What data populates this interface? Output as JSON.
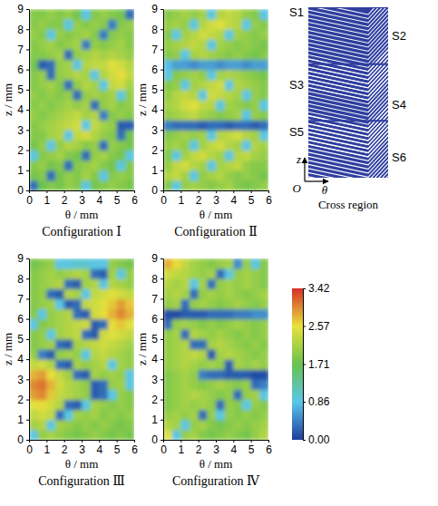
{
  "chart_data": [
    {
      "type": "heatmap",
      "title": "Configuration Ⅰ",
      "x_label": "θ / mm",
      "y_label": "z / mm",
      "xlim": [
        0,
        6
      ],
      "ylim": [
        0,
        9
      ],
      "xticks": [
        0,
        1,
        2,
        3,
        4,
        5,
        6
      ],
      "yticks": [
        0,
        1,
        2,
        3,
        4,
        5,
        6,
        7,
        8,
        9
      ],
      "cell_x": [
        0,
        0.5,
        1,
        1.5,
        2,
        2.5,
        3,
        3.5,
        4,
        4.5,
        5,
        5.5,
        6
      ],
      "cell_y": [
        0,
        0.5,
        1,
        1.5,
        2,
        2.5,
        3,
        3.5,
        4,
        4.5,
        5,
        5.5,
        6,
        6.5,
        7,
        7.5,
        8,
        8.5,
        9
      ],
      "cells": [
        [
          0.3,
          1.7,
          1.9,
          1.8,
          2.0,
          1.9,
          0.9,
          1.8,
          1.9,
          2.0,
          1.9,
          1.8
        ],
        [
          1.8,
          1.9,
          0.3,
          1.8,
          2.0,
          1.9,
          2.1,
          1.9,
          0.9,
          1.9,
          2.0,
          1.9
        ],
        [
          1.9,
          2.0,
          1.8,
          1.9,
          0.3,
          1.9,
          2.0,
          2.1,
          1.9,
          1.8,
          0.9,
          1.9
        ],
        [
          0.9,
          1.9,
          2.0,
          2.1,
          1.9,
          1.8,
          0.3,
          2.0,
          2.1,
          1.9,
          1.8,
          0.9
        ],
        [
          1.8,
          2.0,
          0.9,
          2.0,
          2.2,
          2.1,
          1.9,
          2.0,
          0.3,
          2.0,
          1.9,
          1.8
        ],
        [
          1.9,
          1.9,
          2.1,
          2.2,
          0.9,
          2.3,
          2.4,
          2.2,
          2.0,
          1.9,
          0.3,
          1.8
        ],
        [
          1.9,
          2.0,
          2.1,
          2.2,
          2.3,
          2.4,
          0.9,
          2.3,
          2.1,
          2.0,
          0.2,
          0.2
        ],
        [
          2.0,
          1.9,
          2.0,
          2.1,
          2.2,
          2.3,
          2.1,
          2.2,
          0.4,
          1.9,
          2.0,
          1.9
        ],
        [
          1.9,
          2.0,
          1.9,
          2.0,
          2.1,
          2.0,
          2.1,
          0.3,
          2.0,
          2.1,
          1.9,
          2.0
        ],
        [
          2.0,
          1.9,
          2.0,
          1.9,
          2.0,
          0.3,
          2.0,
          2.1,
          2.0,
          2.1,
          0.9,
          2.0
        ],
        [
          1.9,
          2.0,
          2.1,
          1.9,
          0.3,
          2.0,
          2.2,
          2.1,
          0.9,
          2.3,
          2.4,
          2.1
        ],
        [
          1.9,
          2.0,
          0.3,
          2.0,
          2.1,
          2.2,
          2.1,
          0.9,
          2.2,
          2.4,
          2.6,
          2.3
        ],
        [
          1.8,
          0.2,
          0.3,
          2.0,
          2.1,
          0.9,
          2.2,
          2.3,
          2.3,
          2.5,
          2.4,
          2.2
        ],
        [
          1.9,
          1.9,
          2.0,
          2.1,
          0.3,
          2.0,
          2.1,
          2.2,
          2.1,
          2.2,
          2.1,
          2.0
        ],
        [
          1.9,
          2.0,
          2.1,
          1.9,
          2.0,
          2.1,
          0.4,
          2.0,
          1.9,
          2.0,
          2.1,
          1.9
        ],
        [
          2.0,
          1.9,
          0.9,
          2.0,
          1.9,
          2.0,
          2.1,
          1.9,
          0.4,
          1.9,
          2.0,
          1.9
        ],
        [
          1.9,
          2.0,
          1.9,
          1.9,
          0.9,
          2.0,
          1.9,
          2.0,
          1.9,
          0.4,
          1.9,
          2.0
        ],
        [
          1.9,
          1.9,
          2.0,
          1.9,
          2.0,
          1.8,
          0.9,
          1.9,
          2.0,
          1.9,
          1.8,
          0.3
        ]
      ]
    },
    {
      "type": "heatmap",
      "title": "Configuration Ⅱ",
      "x_label": "θ / mm",
      "y_label": "z / mm",
      "xlim": [
        0,
        6
      ],
      "ylim": [
        0,
        9
      ],
      "xticks": [
        0,
        1,
        2,
        3,
        4,
        5,
        6
      ],
      "yticks": [
        0,
        1,
        2,
        3,
        4,
        5,
        6,
        7,
        8,
        9
      ],
      "cell_x": [
        0,
        0.5,
        1,
        1.5,
        2,
        2.5,
        3,
        3.5,
        4,
        4.5,
        5,
        5.5,
        6
      ],
      "cell_y": [
        0,
        0.5,
        1,
        1.5,
        2,
        2.5,
        3,
        3.5,
        4,
        4.5,
        5,
        5.5,
        6,
        6.5,
        7,
        7.5,
        8,
        8.5,
        9
      ],
      "cells": [
        [
          1.9,
          0.9,
          2.0,
          2.1,
          2.0,
          1.9,
          2.0,
          2.1,
          1.9,
          1.8,
          1.9,
          2.0
        ],
        [
          2.2,
          2.3,
          2.1,
          0.9,
          2.0,
          2.1,
          2.2,
          2.0,
          1.9,
          2.0,
          1.9,
          1.8
        ],
        [
          2.0,
          2.3,
          2.4,
          2.2,
          2.1,
          0.9,
          2.1,
          2.2,
          2.3,
          2.0,
          1.9,
          1.9
        ],
        [
          1.9,
          0.9,
          2.1,
          2.3,
          2.4,
          2.2,
          2.1,
          0.9,
          2.2,
          2.3,
          2.1,
          2.0
        ],
        [
          2.0,
          2.1,
          2.0,
          0.9,
          2.1,
          2.3,
          2.4,
          2.2,
          2.1,
          0.9,
          2.2,
          2.1
        ],
        [
          1.9,
          2.0,
          2.1,
          2.0,
          2.1,
          0.9,
          2.2,
          2.3,
          2.4,
          2.2,
          2.1,
          0.9
        ],
        [
          0.4,
          0.3,
          0.3,
          0.3,
          0.2,
          0.3,
          0.3,
          0.2,
          0.3,
          0.3,
          0.2,
          0.3
        ],
        [
          2.0,
          2.1,
          2.2,
          2.3,
          2.1,
          2.0,
          1.9,
          2.0,
          2.1,
          0.9,
          2.0,
          1.9
        ],
        [
          2.1,
          2.2,
          2.4,
          2.5,
          2.3,
          2.2,
          0.9,
          2.1,
          2.0,
          1.9,
          2.0,
          0.9
        ],
        [
          2.0,
          2.2,
          2.3,
          2.2,
          0.9,
          2.4,
          2.3,
          2.2,
          2.1,
          0.9,
          2.0,
          1.9
        ],
        [
          1.9,
          2.0,
          0.9,
          2.1,
          2.2,
          2.3,
          2.4,
          0.9,
          2.2,
          2.1,
          2.0,
          1.9
        ],
        [
          0.9,
          1.9,
          2.0,
          2.1,
          2.0,
          0.9,
          2.1,
          2.2,
          2.1,
          2.0,
          1.9,
          1.8
        ],
        [
          0.8,
          0.6,
          0.6,
          0.5,
          0.6,
          0.6,
          0.5,
          0.6,
          0.6,
          0.5,
          0.6,
          0.6
        ],
        [
          1.9,
          2.0,
          0.9,
          2.1,
          2.2,
          2.1,
          2.0,
          1.9,
          2.0,
          1.9,
          1.8,
          1.9
        ],
        [
          2.0,
          2.1,
          2.2,
          2.3,
          2.2,
          0.9,
          2.1,
          2.0,
          1.9,
          2.0,
          1.9,
          1.8
        ],
        [
          1.9,
          0.9,
          2.1,
          2.2,
          2.4,
          2.3,
          2.2,
          0.9,
          2.1,
          2.0,
          1.9,
          2.0
        ],
        [
          2.0,
          2.1,
          2.0,
          0.9,
          2.2,
          2.4,
          2.5,
          2.3,
          2.2,
          0.9,
          2.0,
          1.9
        ],
        [
          1.9,
          2.0,
          2.1,
          2.0,
          2.1,
          0.9,
          2.2,
          2.3,
          2.2,
          2.0,
          1.9,
          0.9
        ]
      ]
    },
    {
      "type": "heatmap",
      "title": "Configuration Ⅲ",
      "x_label": "θ / mm",
      "y_label": "z / mm",
      "xlim": [
        0,
        6
      ],
      "ylim": [
        0,
        9
      ],
      "xticks": [
        0,
        1,
        2,
        3,
        4,
        5,
        6
      ],
      "yticks": [
        0,
        1,
        2,
        3,
        4,
        5,
        6,
        7,
        8,
        9
      ],
      "cell_x": [
        0,
        0.5,
        1,
        1.5,
        2,
        2.5,
        3,
        3.5,
        4,
        4.5,
        5,
        5.5,
        6
      ],
      "cell_y": [
        0,
        0.5,
        1,
        1.5,
        2,
        2.5,
        3,
        3.5,
        4,
        4.5,
        5,
        5.5,
        6,
        6.5,
        7,
        7.5,
        8,
        8.5,
        9
      ],
      "cells": [
        [
          0.9,
          2.0,
          2.1,
          2.0,
          1.9,
          1.8,
          1.9,
          2.0,
          1.9,
          1.8,
          1.9,
          1.8
        ],
        [
          2.1,
          2.2,
          0.9,
          2.1,
          2.0,
          1.9,
          2.0,
          1.9,
          2.0,
          1.9,
          1.8,
          1.9
        ],
        [
          2.3,
          2.4,
          2.3,
          0.3,
          0.9,
          2.1,
          2.0,
          2.1,
          1.9,
          2.0,
          1.9,
          2.0
        ],
        [
          2.5,
          2.6,
          2.4,
          2.2,
          0.3,
          0.2,
          0.9,
          2.1,
          2.0,
          1.9,
          2.0,
          1.9
        ],
        [
          2.9,
          3.0,
          2.7,
          2.3,
          2.2,
          2.1,
          2.0,
          0.2,
          0.3,
          0.9,
          2.0,
          1.9
        ],
        [
          3.0,
          3.1,
          2.8,
          2.4,
          2.2,
          2.1,
          2.0,
          0.2,
          0.3,
          2.0,
          2.1,
          0.9
        ],
        [
          2.8,
          2.9,
          2.6,
          2.3,
          2.1,
          0.3,
          0.2,
          2.1,
          2.0,
          2.1,
          2.0,
          0.9
        ],
        [
          2.3,
          2.4,
          2.2,
          0.3,
          0.2,
          2.1,
          2.0,
          2.1,
          2.2,
          0.9,
          2.1,
          2.0
        ],
        [
          2.0,
          0.4,
          0.2,
          2.0,
          2.1,
          2.0,
          0.9,
          2.2,
          2.3,
          2.2,
          2.1,
          2.0
        ],
        [
          1.9,
          2.0,
          2.1,
          0.3,
          0.2,
          2.1,
          2.2,
          2.3,
          2.4,
          2.3,
          2.2,
          2.1
        ],
        [
          1.9,
          2.0,
          0.9,
          2.1,
          2.2,
          2.3,
          0.3,
          0.2,
          2.4,
          2.5,
          2.4,
          2.3
        ],
        [
          0.9,
          1.9,
          2.0,
          2.1,
          2.2,
          2.3,
          2.4,
          0.2,
          0.3,
          2.6,
          2.7,
          2.5
        ],
        [
          1.9,
          0.9,
          2.0,
          2.1,
          2.2,
          0.3,
          0.2,
          2.4,
          2.6,
          2.8,
          3.0,
          2.8
        ],
        [
          1.9,
          2.0,
          2.1,
          0.9,
          0.2,
          0.3,
          2.3,
          2.4,
          2.5,
          2.7,
          2.9,
          2.7
        ],
        [
          1.9,
          2.0,
          0.3,
          0.2,
          2.2,
          2.1,
          0.9,
          2.3,
          2.4,
          2.5,
          2.4,
          2.3
        ],
        [
          1.9,
          2.0,
          2.1,
          2.2,
          0.3,
          0.2,
          2.1,
          2.2,
          0.9,
          2.2,
          2.1,
          2.0
        ],
        [
          1.9,
          2.0,
          2.1,
          2.0,
          2.1,
          2.2,
          2.1,
          0.3,
          0.2,
          2.1,
          0.9,
          2.0
        ],
        [
          1.8,
          1.9,
          2.0,
          0.9,
          0.9,
          1.0,
          1.0,
          0.9,
          0.9,
          2.0,
          1.9,
          1.8
        ]
      ]
    },
    {
      "type": "heatmap",
      "title": "Configuration Ⅳ",
      "x_label": "θ / mm",
      "y_label": "z / mm",
      "xlim": [
        0,
        6
      ],
      "ylim": [
        0,
        9
      ],
      "xticks": [
        0,
        1,
        2,
        3,
        4,
        5,
        6
      ],
      "yticks": [
        0,
        1,
        2,
        3,
        4,
        5,
        6,
        7,
        8,
        9
      ],
      "cell_x": [
        0,
        0.5,
        1,
        1.5,
        2,
        2.5,
        3,
        3.5,
        4,
        4.5,
        5,
        5.5,
        6
      ],
      "cell_y": [
        0,
        0.5,
        1,
        1.5,
        2,
        2.5,
        3,
        3.5,
        4,
        4.5,
        5,
        5.5,
        6,
        6.5,
        7,
        7.5,
        8,
        8.5,
        9
      ],
      "cells": [
        [
          2.5,
          0.9,
          2.0,
          2.1,
          1.9,
          1.8,
          1.9,
          2.0,
          1.9,
          1.8,
          2.0,
          2.2
        ],
        [
          2.2,
          2.1,
          0.9,
          2.0,
          2.1,
          1.9,
          1.8,
          1.9,
          2.0,
          1.9,
          2.0,
          2.1
        ],
        [
          2.0,
          2.1,
          2.0,
          2.1,
          0.3,
          2.0,
          0.9,
          2.0,
          1.9,
          2.0,
          1.9,
          2.0
        ],
        [
          1.9,
          2.0,
          2.1,
          2.0,
          2.1,
          2.0,
          0.3,
          2.0,
          1.9,
          0.9,
          2.0,
          1.9
        ],
        [
          1.9,
          2.0,
          2.1,
          2.2,
          2.1,
          2.0,
          1.9,
          2.0,
          0.3,
          2.0,
          2.1,
          0.9
        ],
        [
          1.9,
          2.0,
          2.1,
          2.0,
          1.9,
          2.0,
          2.1,
          2.0,
          1.9,
          2.0,
          0.3,
          0.4
        ],
        [
          1.9,
          2.0,
          2.1,
          2.0,
          0.4,
          0.3,
          0.3,
          0.2,
          0.2,
          0.2,
          0.1,
          0.1
        ],
        [
          2.0,
          2.1,
          2.2,
          2.1,
          2.0,
          2.1,
          2.0,
          0.2,
          2.1,
          2.0,
          2.1,
          2.0
        ],
        [
          2.0,
          2.1,
          2.2,
          2.3,
          2.2,
          0.2,
          2.1,
          2.2,
          2.1,
          2.0,
          1.9,
          2.0
        ],
        [
          2.0,
          2.1,
          2.2,
          0.3,
          0.3,
          2.1,
          2.2,
          2.1,
          2.0,
          1.9,
          2.0,
          1.9
        ],
        [
          2.0,
          2.1,
          0.3,
          2.2,
          2.1,
          2.0,
          2.1,
          2.0,
          1.9,
          2.0,
          1.9,
          2.0
        ],
        [
          0.3,
          2.0,
          2.1,
          2.0,
          1.9,
          2.0,
          1.9,
          2.0,
          2.1,
          2.0,
          1.9,
          2.0
        ],
        [
          0.1,
          0.1,
          0.2,
          0.2,
          0.2,
          0.3,
          0.3,
          0.3,
          0.4,
          0.4,
          0.5,
          0.5
        ],
        [
          2.0,
          2.1,
          0.3,
          2.0,
          2.1,
          2.0,
          1.9,
          2.0,
          2.1,
          2.0,
          1.9,
          2.0
        ],
        [
          2.1,
          2.2,
          2.1,
          0.3,
          2.0,
          2.1,
          2.0,
          2.1,
          2.0,
          1.9,
          2.0,
          2.1
        ],
        [
          2.2,
          2.1,
          2.2,
          0.9,
          2.1,
          0.3,
          2.0,
          2.1,
          2.0,
          2.1,
          2.0,
          1.9
        ],
        [
          2.4,
          2.3,
          2.2,
          2.1,
          2.0,
          2.1,
          0.3,
          0.9,
          2.0,
          2.1,
          2.0,
          1.9
        ],
        [
          2.8,
          2.6,
          2.3,
          2.1,
          2.0,
          1.9,
          2.0,
          2.1,
          0.5,
          2.0,
          0.9,
          1.9
        ]
      ]
    }
  ],
  "colorbar": {
    "range": [
      0,
      3.42
    ],
    "ticks": [
      {
        "value": 0,
        "label": "0.00"
      },
      0.86,
      1.71,
      2.57,
      3.42
    ]
  },
  "diagram": {
    "title": "Cross region",
    "labels": [
      "S1",
      "S2",
      "S3",
      "S4",
      "S5",
      "S6"
    ],
    "origin": "O",
    "x_axis": "θ",
    "z_axis": "z"
  }
}
